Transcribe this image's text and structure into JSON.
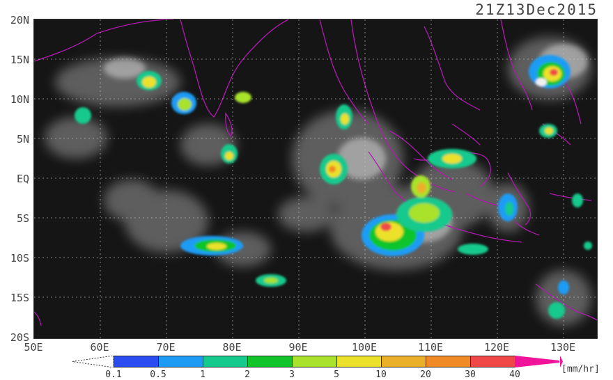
{
  "title": "21Z13Dec2015",
  "y_ticks": [
    "20N",
    "15N",
    "10N",
    "5N",
    "EQ",
    "5S",
    "10S",
    "15S",
    "20S"
  ],
  "x_ticks": [
    "50E",
    "60E",
    "70E",
    "80E",
    "90E",
    "100E",
    "110E",
    "120E",
    "130E"
  ],
  "colorbar": {
    "labels": [
      "0.1",
      "0.5",
      "1",
      "2",
      "3",
      "5",
      "10",
      "20",
      "30",
      "40"
    ],
    "colors": [
      "#2b4cf0",
      "#1e9cf5",
      "#16c98c",
      "#10c42a",
      "#a8e22c",
      "#ece12a",
      "#ebb02a",
      "#ef8a24",
      "#f04848",
      "#f0149a"
    ],
    "unit": "[mm/hr]"
  }
}
